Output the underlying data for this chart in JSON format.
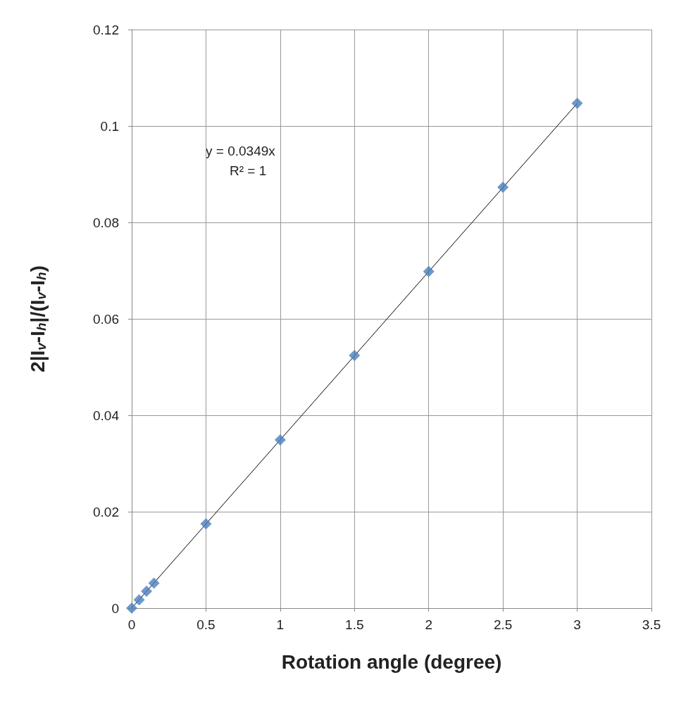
{
  "chart_data": {
    "type": "scatter",
    "xlabel": "Rotation angle (degree)",
    "ylabel": "2|I$_{v}$-I$_{h}$|/(I$_{v}$-I$_{h}$)",
    "x": [
      0,
      0.05,
      0.1,
      0.15,
      0.5,
      1,
      1.5,
      2,
      2.5,
      3
    ],
    "series": [
      {
        "color": "#4a7ebb",
        "marker": "diamond",
        "values": [
          0,
          0.0017,
          0.0035,
          0.0052,
          0.0175,
          0.0349,
          0.0524,
          0.0698,
          0.0873,
          0.1047
        ]
      },
      {
        "type": "line",
        "color": "#000000",
        "marker": "none",
        "x": [
          0,
          3
        ],
        "values": [
          0,
          0.1047
        ]
      }
    ],
    "xlim": [
      0,
      3.5
    ],
    "xticks": [
      0,
      0.5,
      1,
      1.5,
      2,
      2.5,
      3,
      3.5
    ],
    "ylim": [
      0,
      0.12
    ],
    "yticks": [
      0,
      0.02,
      0.04,
      0.06,
      0.08,
      0.1,
      0.12
    ],
    "grid": true,
    "annotations": [
      "y = 0.0349x",
      "R² = 1"
    ]
  }
}
